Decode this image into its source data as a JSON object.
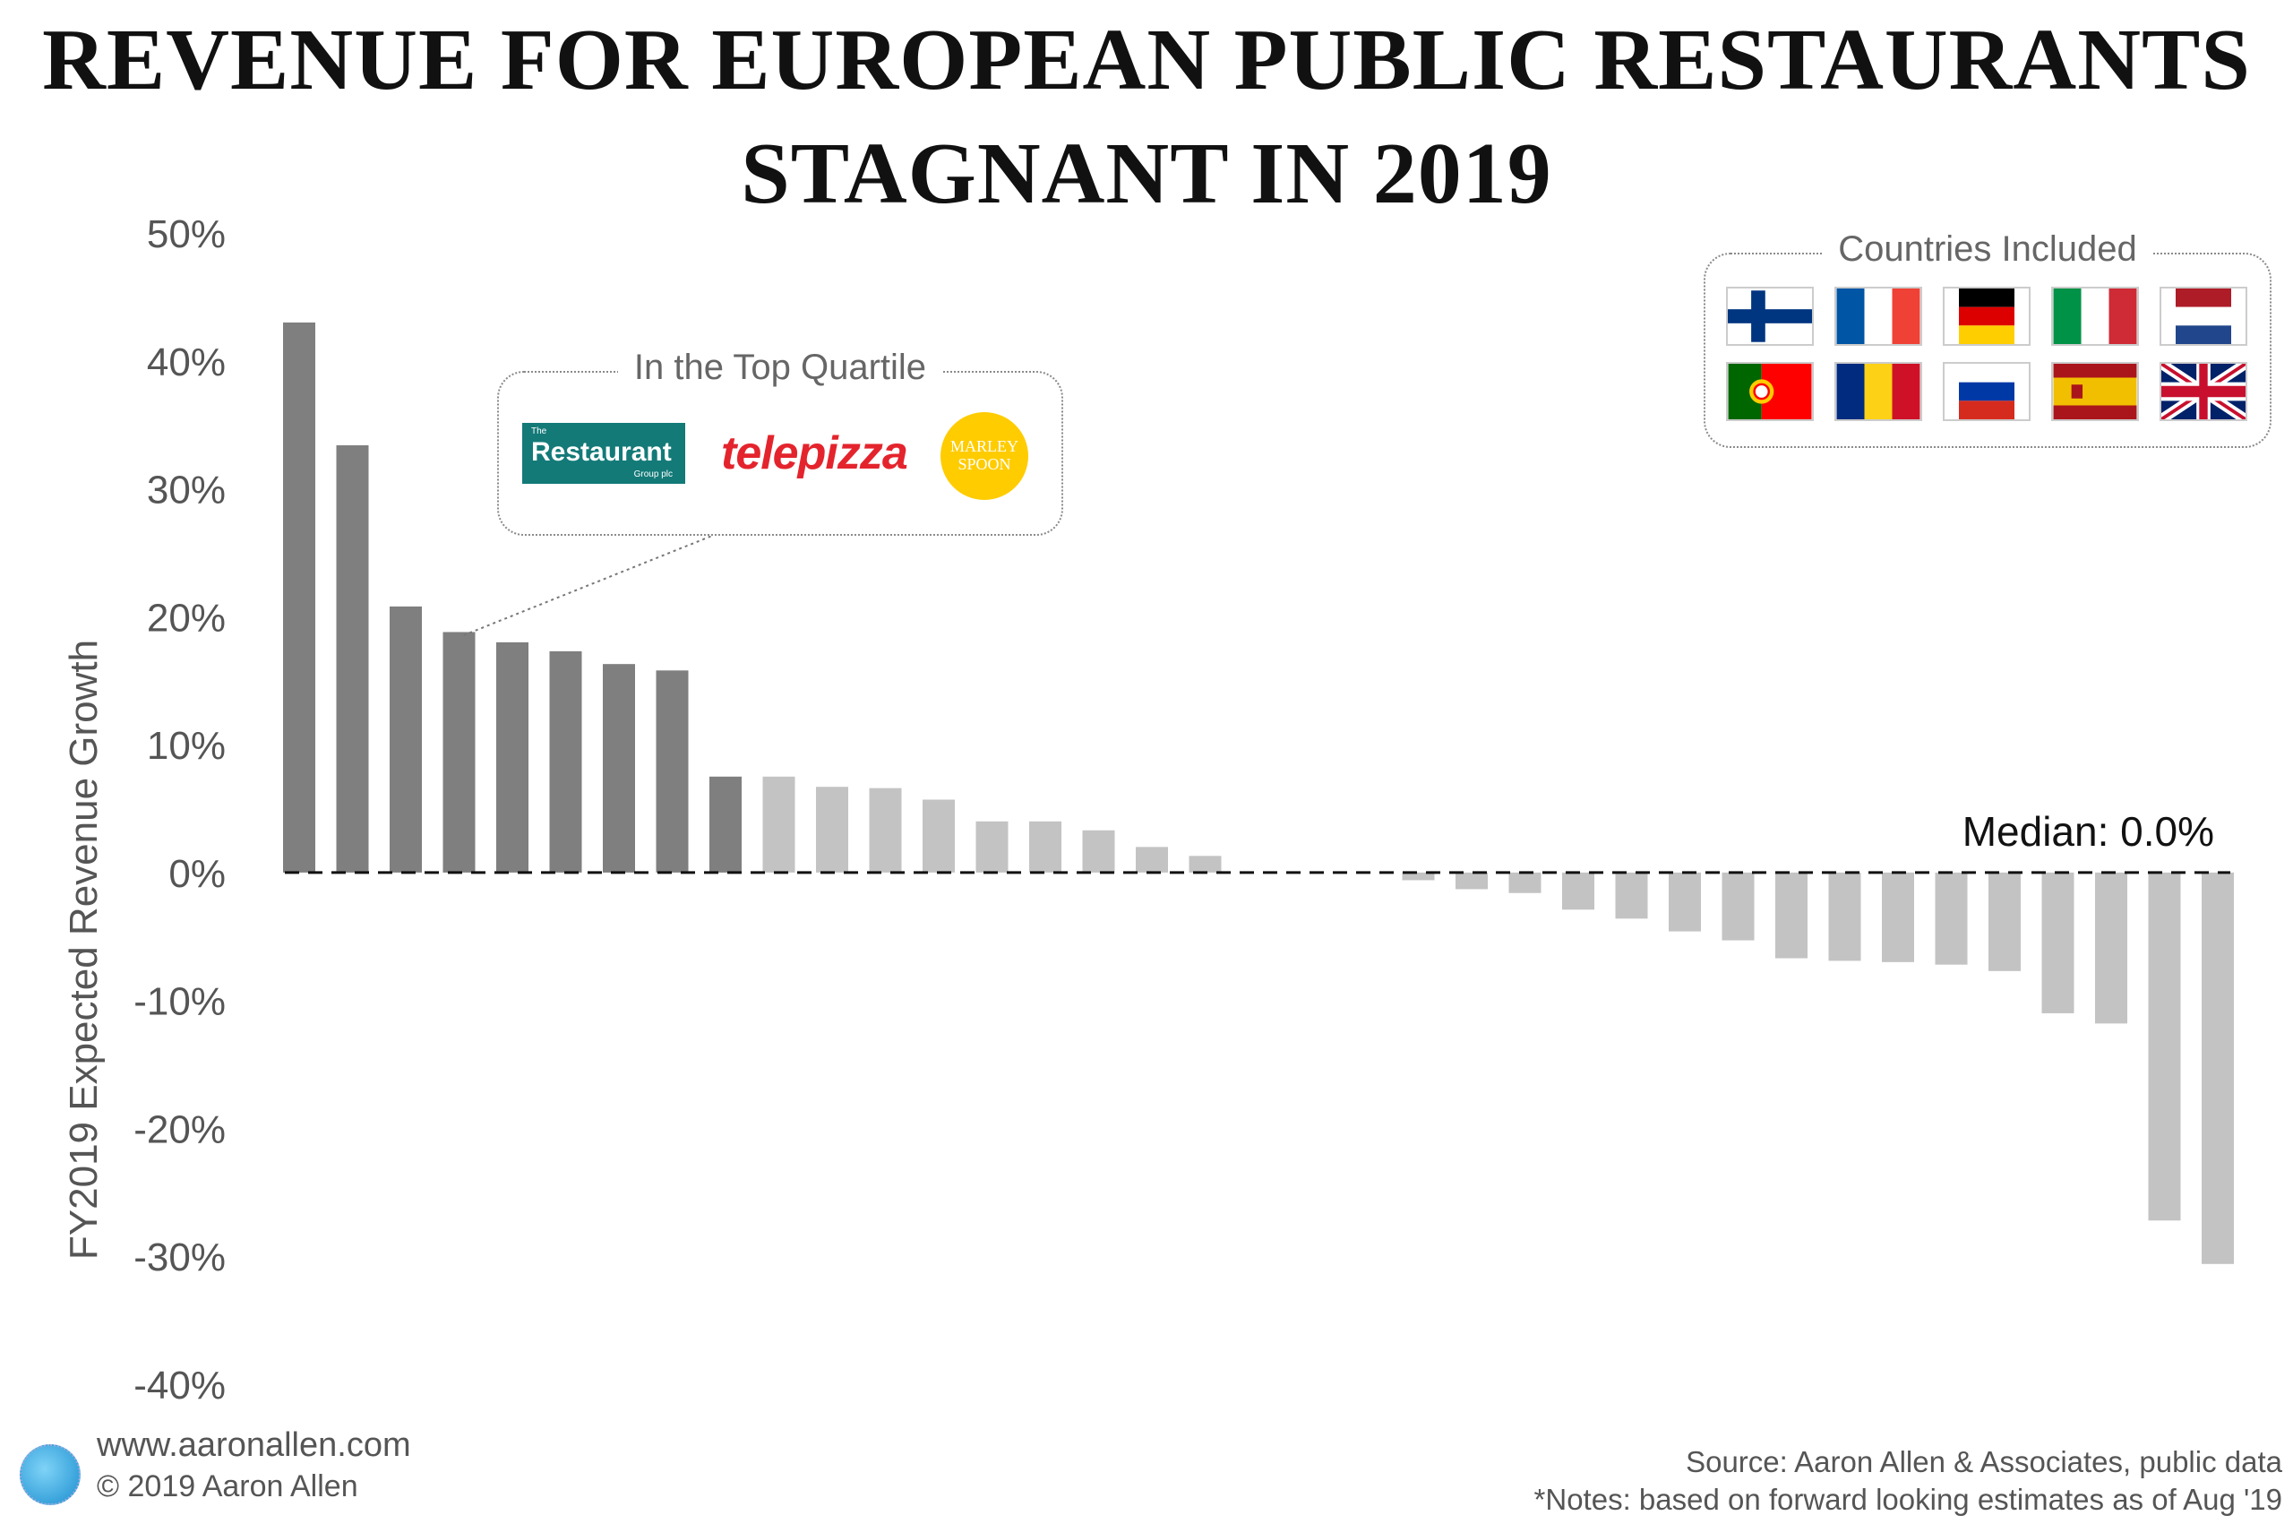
{
  "title": {
    "line1": "REVENUE FOR EUROPEAN PUBLIC RESTAURANTS",
    "line2": "STAGNANT IN 2019"
  },
  "chart_data": {
    "type": "bar",
    "ylabel": "FY2019 Expected Revenue Growth",
    "ylim": [
      -40,
      50
    ],
    "yticks": [
      50,
      40,
      30,
      20,
      10,
      0,
      -10,
      -20,
      -30,
      -40
    ],
    "ytick_labels": [
      "50%",
      "40%",
      "30%",
      "20%",
      "10%",
      "0%",
      "-10%",
      "-20%",
      "-30%",
      "-40%"
    ],
    "values": [
      43.0,
      33.4,
      20.8,
      18.8,
      18.0,
      17.3,
      16.3,
      15.8,
      7.5,
      7.5,
      6.7,
      6.6,
      5.7,
      4.0,
      4.0,
      3.3,
      2.0,
      1.3,
      0.0,
      0.0,
      0.0,
      -0.6,
      -1.3,
      -1.6,
      -2.9,
      -3.6,
      -4.6,
      -5.3,
      -6.7,
      -6.9,
      -7.0,
      -7.2,
      -7.7,
      -11.0,
      -11.8,
      -27.2,
      -30.6
    ],
    "top_quartile_count": 9,
    "colors": {
      "top_quartile": "#7f7f7f",
      "other": "#c3c3c3"
    },
    "median_label": "Median: 0.0%",
    "median_value": 0.0
  },
  "callout": {
    "title": "In the Top Quartile",
    "points_to_bar_index": 3,
    "logos": {
      "restaurant_group": {
        "small_top": "The",
        "name": "Restaurant",
        "small_bottom": "Group plc",
        "color": "#137a78"
      },
      "telepizza": {
        "name": "telepizza",
        "color": "#e4242d"
      },
      "marley_spoon": {
        "line1": "MARLEY",
        "line2": "SPOON",
        "color": "#ffcc00"
      }
    }
  },
  "countries": {
    "title": "Countries Included",
    "flags": [
      "finland-flag",
      "france-flag",
      "germany-flag",
      "italy-flag",
      "netherlands-flag",
      "portugal-flag",
      "romania-flag",
      "russia-flag",
      "spain-flag",
      "uk-flag"
    ]
  },
  "footer": {
    "website": "www.aaronallen.com",
    "copyright": "© 2019 Aaron Allen",
    "source": "Source: Aaron Allen & Associates, public data",
    "notes": "*Notes: based on forward looking estimates as of Aug '19"
  }
}
